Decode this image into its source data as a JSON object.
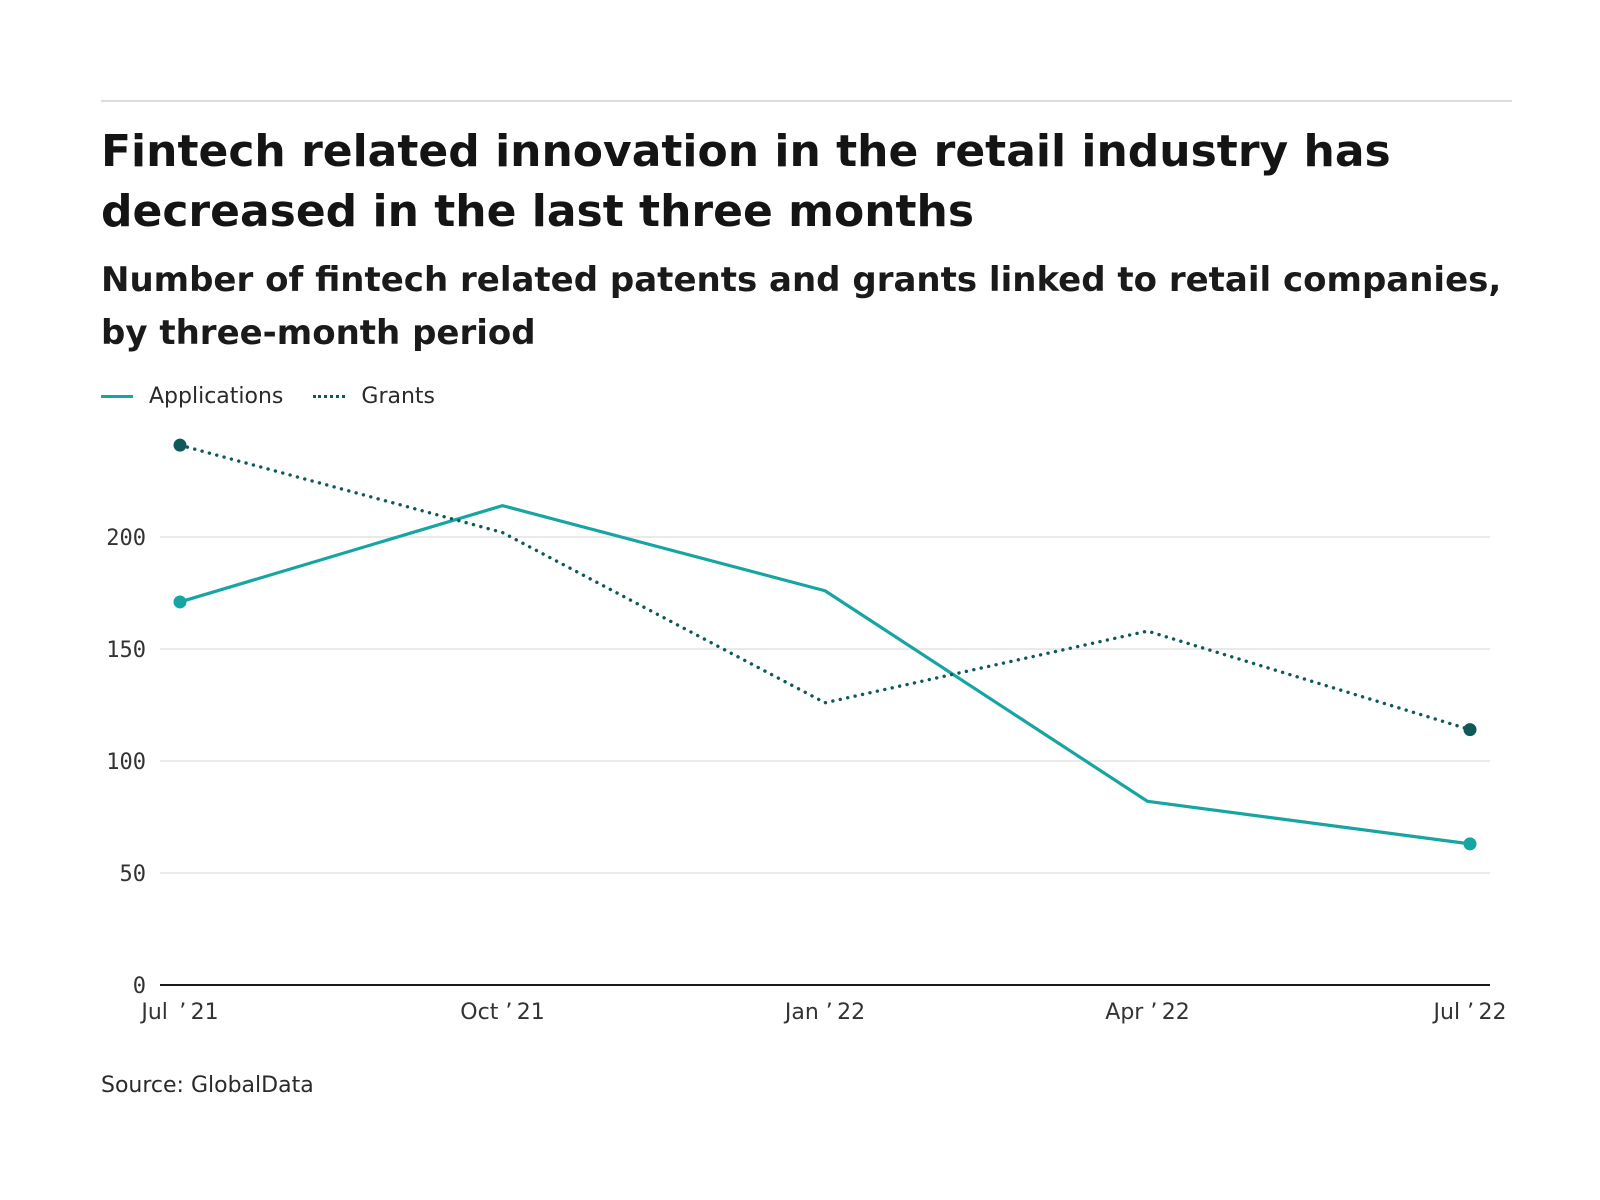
{
  "header": {
    "title": "Fintech related innovation in the retail industry has decreased in the last three months",
    "subtitle": "Number of fintech related patents and grants linked to retail companies, by three-month period"
  },
  "footer": {
    "source": "Source: GlobalData"
  },
  "chart_data": {
    "type": "line",
    "title": "Fintech related innovation in the retail industry has decreased in the last three months",
    "subtitle": "Number of fintech related patents and grants linked to retail companies, by three-month period",
    "x": [
      "Jul '21",
      "Oct '21",
      "Jan '22",
      "Apr '22",
      "Jul '22"
    ],
    "x_tick_labels": [
      "Jul  ’ 21",
      "Oct ’ 21",
      "Jan ’ 22",
      "Apr ’ 22",
      "Jul ’ 22"
    ],
    "series": [
      {
        "name": "Applications",
        "values": [
          171,
          214,
          176,
          82,
          63
        ],
        "color": "#17a5a3",
        "style": "solid"
      },
      {
        "name": "Grants",
        "values": [
          241,
          202,
          126,
          158,
          114
        ],
        "color": "#0f5a59",
        "style": "dotted"
      }
    ],
    "ylim": [
      0,
      250
    ],
    "y_ticks": [
      0,
      50,
      100,
      150,
      200
    ],
    "xlabel": "",
    "ylabel": "",
    "grid": true,
    "legend_position": "top-left"
  }
}
